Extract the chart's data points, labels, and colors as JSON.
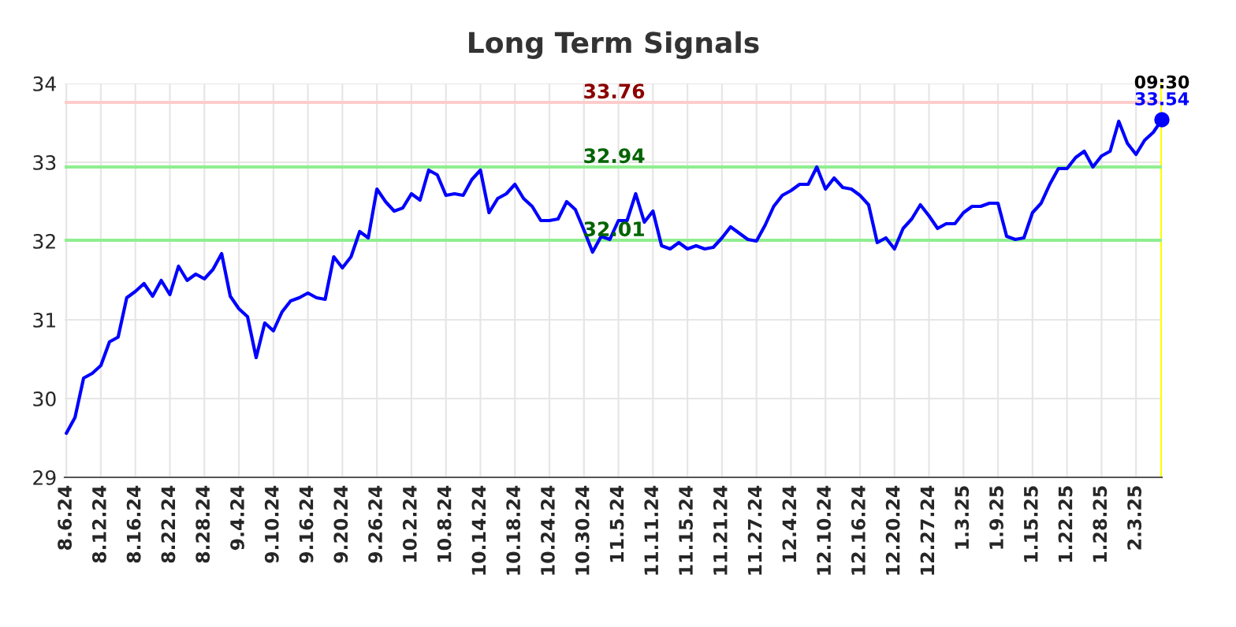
{
  "chart_data": {
    "type": "line",
    "title": "Long Term Signals",
    "categories": [
      "8.6.24",
      null,
      null,
      null,
      "8.12.24",
      null,
      null,
      null,
      "8.16.24",
      null,
      null,
      null,
      "8.22.24",
      null,
      null,
      null,
      "8.28.24",
      null,
      null,
      null,
      "9.4.24",
      null,
      null,
      null,
      "9.10.24",
      null,
      null,
      null,
      "9.16.24",
      null,
      null,
      null,
      "9.20.24",
      null,
      null,
      null,
      "9.26.24",
      null,
      null,
      null,
      "10.2.24",
      null,
      null,
      null,
      "10.8.24",
      null,
      null,
      null,
      "10.14.24",
      null,
      null,
      null,
      "10.18.24",
      null,
      null,
      null,
      "10.24.24",
      null,
      null,
      null,
      "10.30.24",
      null,
      null,
      null,
      "11.5.24",
      null,
      null,
      null,
      "11.11.24",
      null,
      null,
      null,
      "11.15.24",
      null,
      null,
      null,
      "11.21.24",
      null,
      null,
      null,
      "11.27.24",
      null,
      null,
      null,
      "12.4.24",
      null,
      null,
      null,
      "12.10.24",
      null,
      null,
      null,
      "12.16.24",
      null,
      null,
      null,
      "12.20.24",
      null,
      null,
      null,
      "12.27.24",
      null,
      null,
      null,
      "1.3.25",
      null,
      null,
      null,
      "1.9.25",
      null,
      null,
      null,
      "1.15.25",
      null,
      null,
      null,
      "1.22.25",
      null,
      null,
      null,
      "1.28.25",
      null,
      null,
      null,
      "2.3.25",
      null,
      null,
      null
    ],
    "series": [
      {
        "color": "#0000ff",
        "values": [
          29.56,
          29.76,
          30.26,
          30.32,
          30.42,
          30.72,
          30.78,
          31.28,
          31.36,
          31.46,
          31.3,
          31.5,
          31.32,
          31.68,
          31.5,
          31.58,
          31.52,
          31.64,
          31.84,
          31.3,
          31.14,
          31.04,
          30.52,
          30.96,
          30.86,
          31.1,
          31.24,
          31.28,
          31.34,
          31.28,
          31.26,
          31.8,
          31.66,
          31.8,
          32.12,
          32.04,
          32.66,
          32.5,
          32.38,
          32.42,
          32.6,
          32.52,
          32.9,
          32.84,
          32.58,
          32.6,
          32.58,
          32.78,
          32.9,
          32.36,
          32.54,
          32.6,
          32.72,
          32.54,
          32.44,
          32.26,
          32.26,
          32.28,
          32.5,
          32.4,
          32.14,
          31.86,
          32.06,
          32.02,
          32.26,
          32.26,
          32.6,
          32.24,
          32.38,
          31.94,
          31.9,
          31.98,
          31.9,
          31.94,
          31.9,
          31.92,
          32.04,
          32.18,
          32.1,
          32.02,
          32.0,
          32.2,
          32.44,
          32.58,
          32.64,
          32.72,
          32.72,
          32.94,
          32.66,
          32.8,
          32.68,
          32.66,
          32.58,
          32.46,
          31.98,
          32.04,
          31.9,
          32.16,
          32.28,
          32.46,
          32.32,
          32.16,
          32.22,
          32.22,
          32.36,
          32.44,
          32.44,
          32.48,
          32.48,
          32.06,
          32.02,
          32.04,
          32.36,
          32.48,
          32.72,
          32.92,
          32.92,
          33.06,
          33.14,
          32.94,
          33.08,
          33.14,
          33.52,
          33.24,
          33.1,
          33.28,
          33.38,
          33.54
        ]
      },
      {
        "type": "scatter",
        "color": "#0000ff",
        "marker": "circle",
        "values": [
          null,
          null,
          null,
          null,
          null,
          null,
          null,
          null,
          null,
          null,
          null,
          null,
          null,
          null,
          null,
          null,
          null,
          null,
          null,
          null,
          null,
          null,
          null,
          null,
          null,
          null,
          null,
          null,
          null,
          null,
          null,
          null,
          null,
          null,
          null,
          null,
          null,
          null,
          null,
          null,
          null,
          null,
          null,
          null,
          null,
          null,
          null,
          null,
          null,
          null,
          null,
          null,
          null,
          null,
          null,
          null,
          null,
          null,
          null,
          null,
          null,
          null,
          null,
          null,
          null,
          null,
          null,
          null,
          null,
          null,
          null,
          null,
          null,
          null,
          null,
          null,
          null,
          null,
          null,
          null,
          null,
          null,
          null,
          null,
          null,
          null,
          null,
          null,
          null,
          null,
          null,
          null,
          null,
          null,
          null,
          null,
          null,
          null,
          null,
          null,
          null,
          null,
          null,
          null,
          null,
          null,
          null,
          null,
          null,
          null,
          null,
          null,
          null,
          null,
          null,
          null,
          null,
          null,
          null,
          null,
          null,
          null,
          null,
          null,
          null,
          null,
          null,
          33.54
        ],
        "value_labels": [
          null,
          null,
          null,
          null,
          null,
          null,
          null,
          null,
          null,
          null,
          null,
          null,
          null,
          null,
          null,
          null,
          null,
          null,
          null,
          null,
          null,
          null,
          null,
          null,
          null,
          null,
          null,
          null,
          null,
          null,
          null,
          null,
          null,
          null,
          null,
          null,
          null,
          null,
          null,
          null,
          null,
          null,
          null,
          null,
          null,
          null,
          null,
          null,
          null,
          null,
          null,
          null,
          null,
          null,
          null,
          null,
          null,
          null,
          null,
          null,
          null,
          null,
          null,
          null,
          null,
          null,
          null,
          null,
          null,
          null,
          null,
          null,
          null,
          null,
          null,
          null,
          null,
          null,
          null,
          null,
          null,
          null,
          null,
          null,
          null,
          null,
          null,
          null,
          null,
          null,
          null,
          null,
          null,
          null,
          null,
          null,
          null,
          null,
          null,
          null,
          null,
          null,
          null,
          null,
          null,
          null,
          null,
          null,
          null,
          null,
          null,
          null,
          null,
          null,
          null,
          null,
          null,
          null,
          null,
          null,
          null,
          null,
          null,
          null,
          null,
          null,
          null,
          "33.54"
        ]
      }
    ],
    "annotations": [
      "09:30"
    ],
    "ylim": [
      29,
      34
    ],
    "yticks": [
      29,
      30,
      31,
      32,
      33,
      34
    ],
    "grid": true,
    "legend": false,
    "ref_lines": [
      {
        "axis": "y",
        "value": 33.76,
        "label": "33.76",
        "color": "#ffcccc"
      },
      {
        "axis": "y",
        "value": 32.94,
        "label": "32.94",
        "color": "#90ee90"
      },
      {
        "axis": "y",
        "value": 32.01,
        "label": "32.01",
        "color": "#90ee90"
      }
    ]
  }
}
